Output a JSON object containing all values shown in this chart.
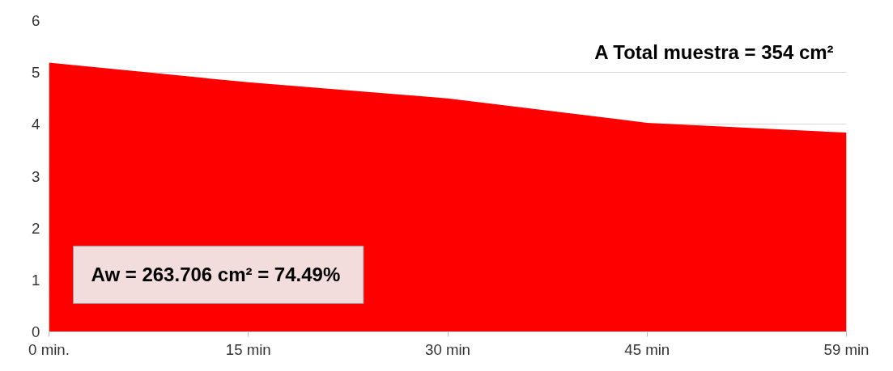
{
  "chart_data": {
    "type": "area",
    "categories": [
      "0 min.",
      "15 min",
      "30 min",
      "45 min",
      "59 min"
    ],
    "values": [
      5.19,
      4.81,
      4.5,
      4.03,
      3.84
    ],
    "color": "#ff0000",
    "ylim": [
      0,
      6
    ],
    "yticks": [
      0,
      1,
      2,
      3,
      4,
      5,
      6
    ],
    "grid": "y",
    "annotations": [
      "A Total muestra = 354 cm²",
      "Aw = 263.706 cm²  = 74.49%"
    ]
  }
}
